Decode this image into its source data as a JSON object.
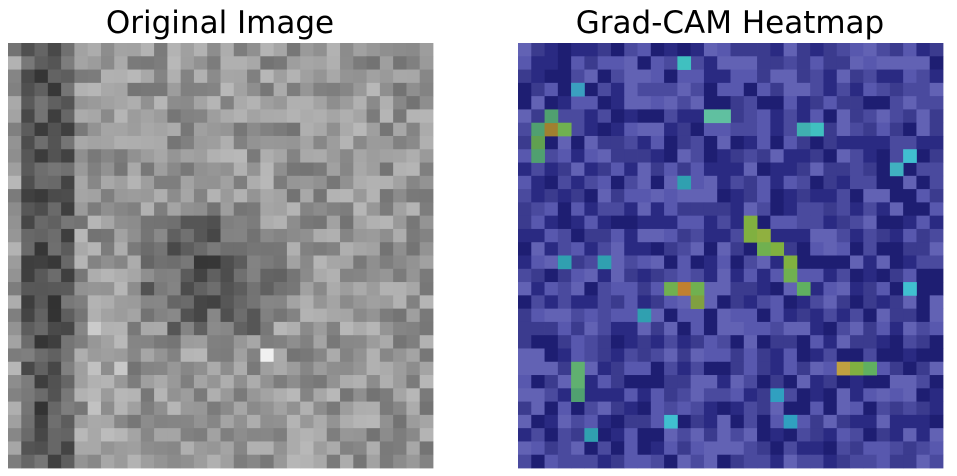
{
  "panels": [
    {
      "title": "Original Image"
    },
    {
      "title": "Grad-CAM Heatmap"
    }
  ]
}
